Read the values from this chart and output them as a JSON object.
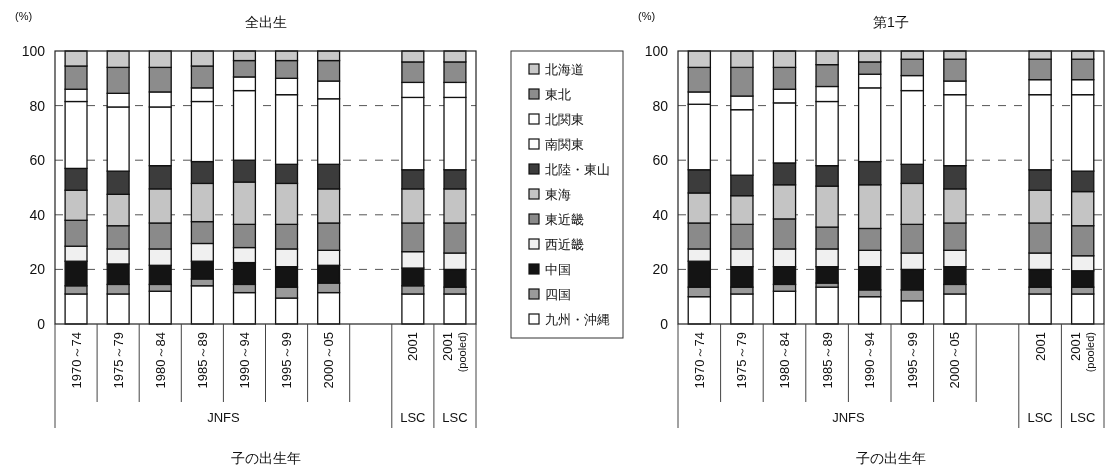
{
  "chart_data": [
    {
      "type": "bar",
      "title": "全出生",
      "ylabel": "(%)",
      "xlabel": "子の出生年",
      "stacked": true,
      "ylim": [
        0,
        100
      ],
      "yticks": [
        0,
        20,
        40,
        60,
        80,
        100
      ],
      "grid": "y",
      "legend": "right",
      "categories": [
        "1970～74",
        "1975～79",
        "1980～84",
        "1985～89",
        "1990～94",
        "1995～99",
        "2000～05",
        null,
        "2001",
        "2001 (pooled)"
      ],
      "annotations": [
        "JNFS",
        "LSC",
        "LSC"
      ],
      "series": [
        {
          "name": "九州・沖縄",
          "color": "#ffffff",
          "values": [
            11,
            11,
            12,
            14,
            11.5,
            9.5,
            11.5,
            null,
            11,
            11
          ]
        },
        {
          "name": "四国",
          "color": "#9a9a9a",
          "values": [
            3,
            3.5,
            2.5,
            2.5,
            3,
            4,
            3.5,
            null,
            3,
            2.5
          ]
        },
        {
          "name": "中国",
          "color": "#141414",
          "values": [
            9,
            7.5,
            7,
            6.5,
            8,
            7.5,
            6.5,
            null,
            6.5,
            6.5
          ]
        },
        {
          "name": "西近畿",
          "color": "#f0f0f0",
          "values": [
            5.5,
            5.5,
            6,
            6.5,
            5.5,
            6.5,
            5.5,
            null,
            6,
            6
          ]
        },
        {
          "name": "東近畿",
          "color": "#8a8a8a",
          "values": [
            9.5,
            8.5,
            9.5,
            8,
            8.5,
            9,
            10,
            null,
            10.5,
            11
          ]
        },
        {
          "name": "東海",
          "color": "#c4c4c4",
          "values": [
            11,
            11.5,
            12.5,
            14,
            15.5,
            15,
            12.5,
            null,
            12.5,
            12.5
          ]
        },
        {
          "name": "北陸・東山",
          "color": "#3c3c3c",
          "values": [
            8,
            8.5,
            8.5,
            8,
            8,
            7,
            9,
            null,
            7,
            7
          ]
        },
        {
          "name": "南関東",
          "color": "#ffffff",
          "values": [
            24.5,
            23.5,
            21.5,
            22,
            25.5,
            25.5,
            24,
            null,
            26.5,
            26.5
          ]
        },
        {
          "name": "北関東",
          "color": "#ffffff",
          "values": [
            4.5,
            5,
            5.5,
            5,
            5,
            6,
            6.5,
            null,
            5.5,
            5.5
          ]
        },
        {
          "name": "東北",
          "color": "#8c8c8c",
          "values": [
            8.5,
            9.5,
            9,
            8,
            6,
            6.5,
            7.5,
            null,
            7.5,
            7.5
          ]
        },
        {
          "name": "北海道",
          "color": "#c8c8c8",
          "values": [
            5.5,
            6,
            6,
            5.5,
            3.5,
            3.5,
            3.5,
            null,
            4,
            4
          ]
        }
      ]
    },
    {
      "type": "bar",
      "title": "第1子",
      "ylabel": "(%)",
      "xlabel": "子の出生年",
      "stacked": true,
      "ylim": [
        0,
        100
      ],
      "yticks": [
        0,
        20,
        40,
        60,
        80,
        100
      ],
      "grid": "y",
      "categories": [
        "1970～74",
        "1975～79",
        "1980～84",
        "1985～89",
        "1990～94",
        "1995～99",
        "2000～05",
        null,
        "2001",
        "2001 (pooled)"
      ],
      "annotations": [
        "JNFS",
        "LSC",
        "LSC"
      ],
      "series": [
        {
          "color": "#ffffff",
          "values": [
            10,
            11,
            12,
            13.5,
            10,
            8.5,
            11,
            null,
            11,
            11
          ]
        },
        {
          "color": "#9a9a9a",
          "values": [
            3.5,
            2.5,
            2.5,
            1.5,
            2.5,
            4,
            3.5,
            null,
            2.5,
            2.5
          ]
        },
        {
          "color": "#141414",
          "values": [
            9.5,
            7.5,
            6.5,
            6,
            8.5,
            7.5,
            6.5,
            null,
            6.5,
            6
          ]
        },
        {
          "color": "#f0f0f0",
          "values": [
            4.5,
            6.5,
            6.5,
            6.5,
            6,
            6,
            6,
            null,
            6,
            5.5
          ]
        },
        {
          "color": "#8a8a8a",
          "values": [
            9.5,
            9,
            11,
            8,
            8,
            10.5,
            10,
            null,
            11,
            11
          ]
        },
        {
          "color": "#c4c4c4",
          "values": [
            11,
            10.5,
            12.5,
            15,
            16,
            15,
            12.5,
            null,
            12,
            12.5
          ]
        },
        {
          "color": "#3c3c3c",
          "values": [
            8.5,
            7.5,
            8,
            7.5,
            8.5,
            7,
            8.5,
            null,
            7.5,
            7.5
          ]
        },
        {
          "color": "#ffffff",
          "values": [
            24,
            24,
            22,
            23.5,
            27,
            27,
            26,
            null,
            27.5,
            28
          ]
        },
        {
          "color": "#ffffff",
          "values": [
            4.5,
            5,
            5,
            5.5,
            5,
            5.5,
            5,
            null,
            5.5,
            5.5
          ]
        },
        {
          "color": "#8c8c8c",
          "values": [
            9,
            10.5,
            8,
            8,
            4.5,
            6,
            8,
            null,
            7.5,
            7.5
          ]
        },
        {
          "color": "#c8c8c8",
          "values": [
            6,
            6,
            6,
            5,
            4,
            3,
            3,
            null,
            3,
            3
          ]
        }
      ]
    }
  ]
}
